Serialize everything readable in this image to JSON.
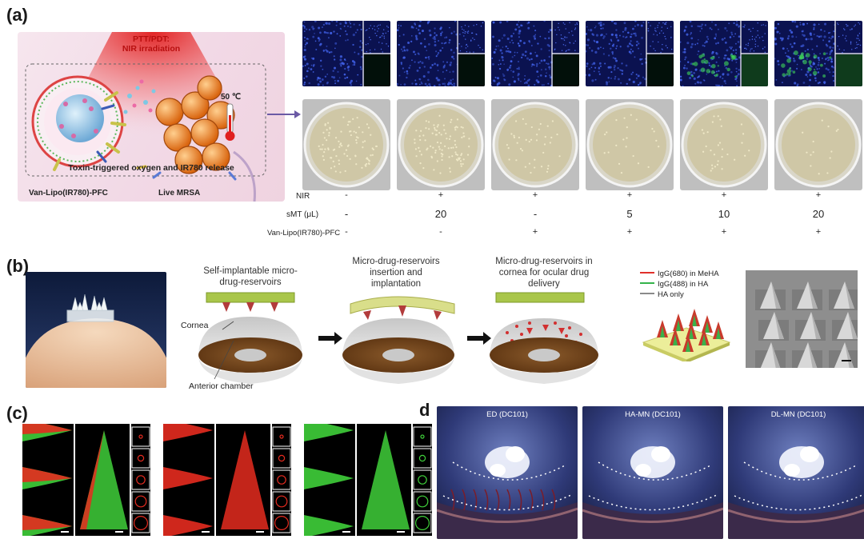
{
  "panels": {
    "a": "(a)",
    "b": "(b)",
    "c": "(c)",
    "d": "d"
  },
  "a": {
    "ptt_title": "PTT/PDT:",
    "ptt_sub": "NIR irradiation",
    "temp": "50 ℃",
    "toxin": "Toxin-triggered oxygen and IR780 release",
    "lipo": "Van-Lipo(IR780)-PFC",
    "mrsa": "Live MRSA",
    "rows": [
      {
        "label": "NIR",
        "values": [
          "-",
          "+",
          "+",
          "+",
          "+",
          "+"
        ]
      },
      {
        "label": "sMT (μL)",
        "values": [
          "-",
          "20",
          "-",
          "5",
          "10",
          "20"
        ]
      },
      {
        "label": "Van-Lipo(IR780)-PFC",
        "values": [
          "-",
          "-",
          "+",
          "+",
          "+",
          "+"
        ]
      }
    ]
  },
  "b": {
    "cap1": "Self-implantable micro-drug-reservoirs",
    "cap2": "Micro-drug-reservoirs insertion and implantation",
    "cap3": "Micro-drug-reservoirs in cornea for ocular drug delivery",
    "cornea": "Cornea",
    "anterior": "Anterior chamber",
    "legend": [
      {
        "label": "IgG(680) in MeHA",
        "color": "#e0302b"
      },
      {
        "label": "IgG(488) in HA",
        "color": "#34b34a"
      },
      {
        "label": "HA only",
        "color": "#8a8a8a"
      }
    ]
  },
  "d": {
    "titles": [
      "ED (DC101)",
      "HA-MN (DC101)",
      "DL-MN (DC101)"
    ]
  },
  "colors": {
    "red_fluor": "#e52b1f",
    "green_fluor": "#3fcf3a",
    "cornea_brown": "#6e3f1a"
  }
}
